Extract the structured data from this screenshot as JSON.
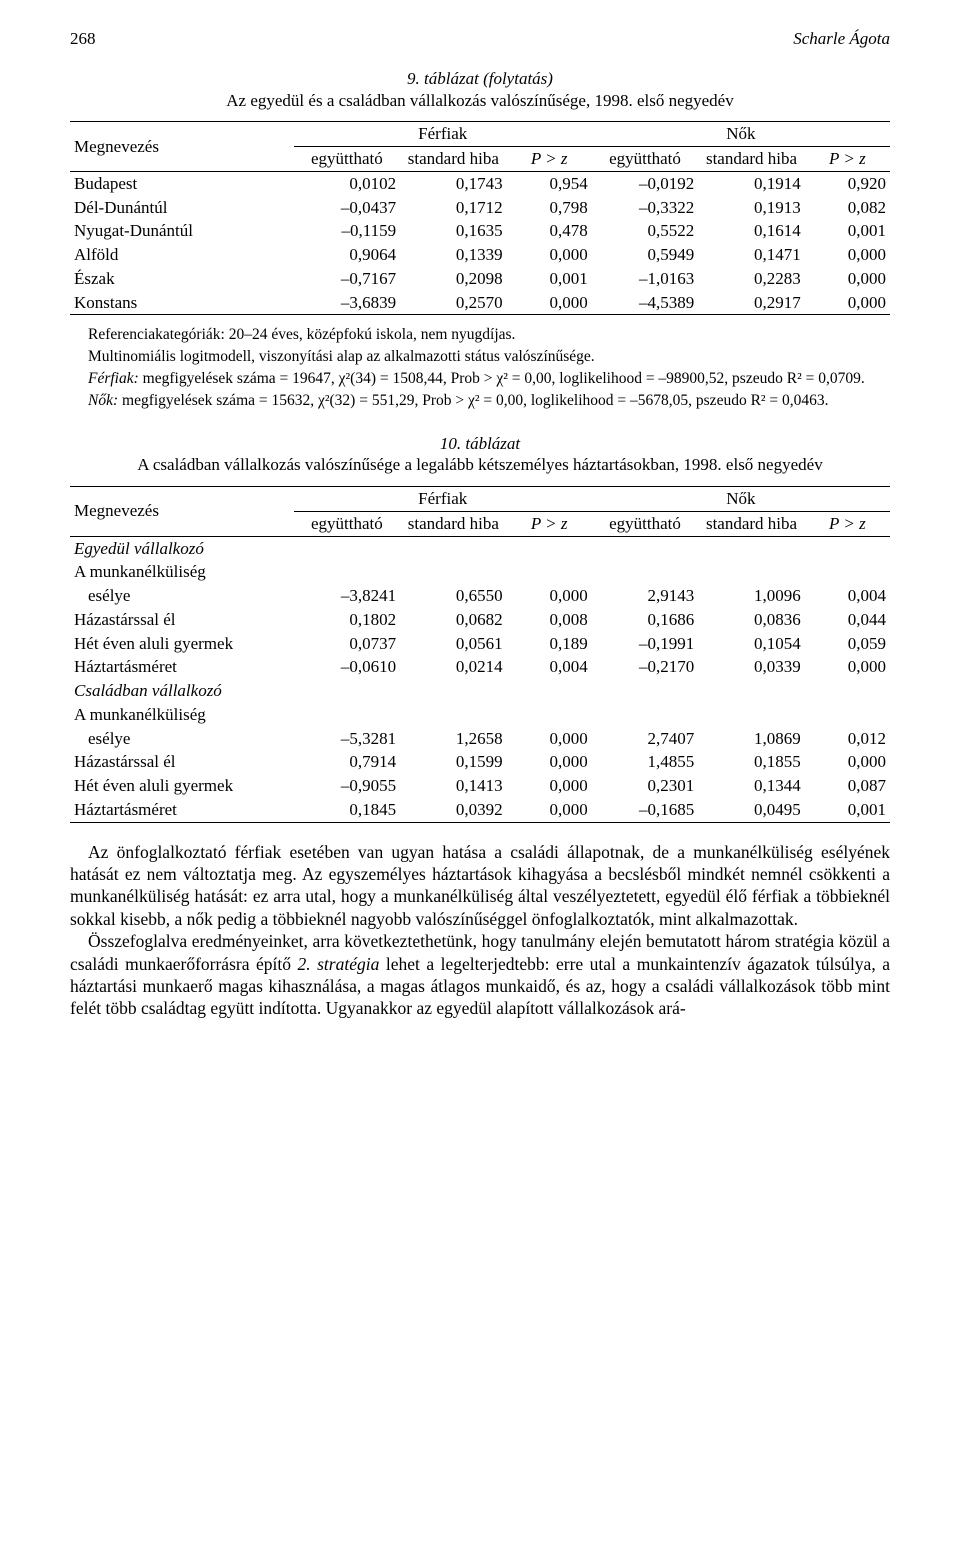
{
  "running_head": {
    "page_no": "268",
    "title": "Scharle Ágota"
  },
  "table9": {
    "caption_num": "9. táblázat (folytatás)",
    "caption_text": "Az egyedül és a családban vállalkozás valószínűsége, 1998. első negyedév",
    "col_left": "Megnevezés",
    "group_m": "Férfiak",
    "group_f": "Nők",
    "sub_coef": "együttható",
    "sub_se": "standard hiba",
    "sub_pz": "P > z",
    "rows": [
      {
        "label": "Budapest",
        "m": [
          "0,0102",
          "0,1743",
          "0,954"
        ],
        "f": [
          "–0,0192",
          "0,1914",
          "0,920"
        ]
      },
      {
        "label": "Dél-Dunántúl",
        "m": [
          "–0,0437",
          "0,1712",
          "0,798"
        ],
        "f": [
          "–0,3322",
          "0,1913",
          "0,082"
        ]
      },
      {
        "label": "Nyugat-Dunántúl",
        "m": [
          "–0,1159",
          "0,1635",
          "0,478"
        ],
        "f": [
          "0,5522",
          "0,1614",
          "0,001"
        ]
      },
      {
        "label": "Alföld",
        "m": [
          "0,9064",
          "0,1339",
          "0,000"
        ],
        "f": [
          "0,5949",
          "0,1471",
          "0,000"
        ]
      },
      {
        "label": "Észak",
        "m": [
          "–0,7167",
          "0,2098",
          "0,001"
        ],
        "f": [
          "–1,0163",
          "0,2283",
          "0,000"
        ]
      },
      {
        "label": "Konstans",
        "m": [
          "–3,6839",
          "0,2570",
          "0,000"
        ],
        "f": [
          "–4,5389",
          "0,2917",
          "0,000"
        ]
      }
    ],
    "notes": [
      "Referenciakategóriák: 20–24 éves, középfokú iskola, nem nyugdíjas.",
      "Multinomiális logitmodell, viszonyítási alap az alkalmazotti státus valószínűsége.",
      "Férfiak: megfigyelések száma = 19647, χ²(34) = 1508,44, Prob  >  χ² = 0,00, loglikelihood  =  –98900,52, pszeudo R²  =  0,0709.",
      "Nők: megfigyelések száma  =  15632, χ²(32)  =  551,29, Prob  >  χ²  =  0,00, loglikelihood  =  –5678,05, pszeudo R²  =  0,0463."
    ]
  },
  "table10": {
    "caption_num": "10. táblázat",
    "caption_text": "A családban vállalkozás valószínűsége a legalább kétszemélyes háztartásokban, 1998. első negyedév",
    "col_left": "Megnevezés",
    "group_m": "Férfiak",
    "group_f": "Nők",
    "sub_coef": "együttható",
    "sub_se": "standard hiba",
    "sub_pz": "P > z",
    "section1": "Egyedül vállalkozó",
    "section2": "Családban vállalkozó",
    "mn_label1": "A munkanélküliség",
    "mn_label2": "esélye",
    "rows1": [
      {
        "label": "esélye",
        "m": [
          "–3,8241",
          "0,6550",
          "0,000"
        ],
        "f": [
          "2,9143",
          "1,0096",
          "0,004"
        ]
      },
      {
        "label": "Házastárssal él",
        "m": [
          "0,1802",
          "0,0682",
          "0,008"
        ],
        "f": [
          "0,1686",
          "0,0836",
          "0,044"
        ]
      },
      {
        "label": "Hét éven aluli gyermek",
        "m": [
          "0,0737",
          "0,0561",
          "0,189"
        ],
        "f": [
          "–0,1991",
          "0,1054",
          "0,059"
        ]
      },
      {
        "label": "Háztartásméret",
        "m": [
          "–0,0610",
          "0,0214",
          "0,004"
        ],
        "f": [
          "–0,2170",
          "0,0339",
          "0,000"
        ]
      }
    ],
    "rows2": [
      {
        "label": "esélye",
        "m": [
          "–5,3281",
          "1,2658",
          "0,000"
        ],
        "f": [
          "2,7407",
          "1,0869",
          "0,012"
        ]
      },
      {
        "label": "Házastárssal él",
        "m": [
          "0,7914",
          "0,1599",
          "0,000"
        ],
        "f": [
          "1,4855",
          "0,1855",
          "0,000"
        ]
      },
      {
        "label": "Hét éven aluli gyermek",
        "m": [
          "–0,9055",
          "0,1413",
          "0,000"
        ],
        "f": [
          "0,2301",
          "0,1344",
          "0,087"
        ]
      },
      {
        "label": "Háztartásméret",
        "m": [
          "0,1845",
          "0,0392",
          "0,000"
        ],
        "f": [
          "–0,1685",
          "0,0495",
          "0,001"
        ]
      }
    ]
  },
  "body": {
    "p1": "Az önfoglalkoztató férfiak esetében van ugyan hatása a családi állapotnak, de a munkanélküliség esélyének hatását ez nem változtatja meg. Az egyszemélyes háztartások kihagyása a becslésből mindkét nemnél csökkenti a munkanélküliség hatását: ez arra utal, hogy a munkanélküliség által veszélyeztetett, egyedül élő férfiak a többieknél sokkal kisebb, a nők pedig a többieknél nagyobb valószínűséggel önfoglalkoztatók, mint alkalmazottak.",
    "p2a": "Összefoglalva eredményeinket, arra következtethetünk, hogy tanulmány elején bemutatott három stratégia közül a családi munkaerőforrásra építő ",
    "p2b": "2. stratégia",
    "p2c": " lehet a legelterjedtebb: erre utal a munkaintenzív ágazatok túlsúlya, a háztartási munkaerő magas kihasználása, a magas átlagos munkaidő, és az, hogy a családi vállalkozások több mint felét több családtag együtt indította. Ugyanakkor az egyedül alapított vállalkozások ará-"
  },
  "style": {
    "col_widths": [
      "210",
      "100",
      "100",
      "80",
      "100",
      "100",
      "80"
    ],
    "font_family": "Times New Roman",
    "text_color": "#000000",
    "background": "#ffffff"
  }
}
